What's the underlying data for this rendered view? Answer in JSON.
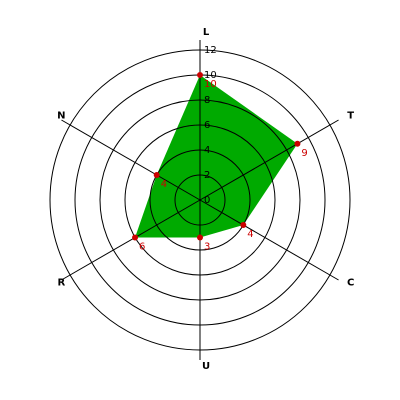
{
  "chart_data": {
    "type": "radar",
    "categories": [
      "L",
      "T",
      "C",
      "U",
      "R",
      "N"
    ],
    "series": [
      {
        "values": [
          10,
          9,
          4,
          3,
          6,
          4
        ],
        "color": "#00aa00",
        "marker_color": "#cc0000"
      }
    ],
    "ylim": [
      0,
      12
    ],
    "yticks": [
      0,
      2,
      4,
      6,
      8,
      10,
      12
    ],
    "grid": true
  }
}
